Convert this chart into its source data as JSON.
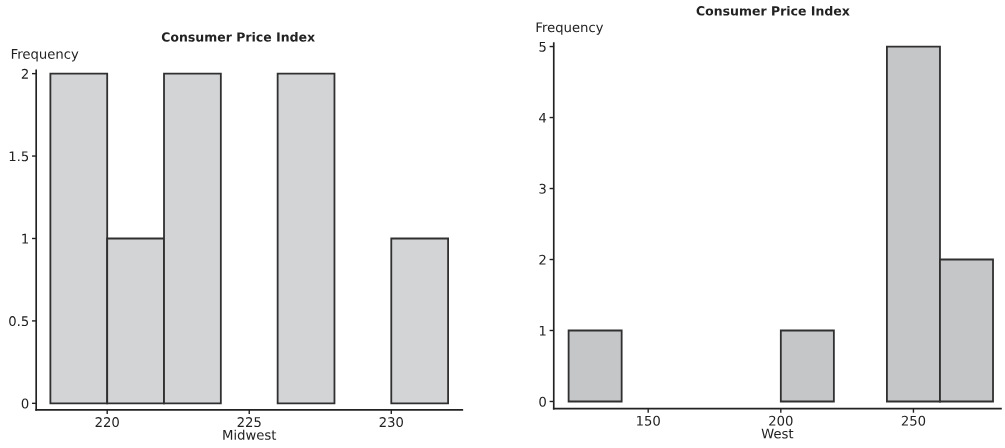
{
  "chart_data": [
    {
      "type": "histogram",
      "title": "Consumer Price Index",
      "xlabel": "Midwest",
      "ylabel": "Frequency",
      "bins": [
        218,
        220,
        222,
        224,
        226,
        228,
        230,
        232
      ],
      "values": [
        2,
        1,
        2,
        0,
        2,
        0,
        1
      ],
      "color": "#d3d4d6",
      "xlim": [
        217.5,
        232.5
      ],
      "ylim": [
        -0.04,
        2.02
      ],
      "xticks": [
        220,
        225,
        230
      ],
      "yticks": [
        0,
        0.5,
        1,
        1.5,
        2
      ]
    },
    {
      "type": "histogram",
      "title": "Consumer Price Index",
      "xlabel": "West",
      "ylabel": "Frequency",
      "bins": [
        120,
        140,
        160,
        180,
        200,
        220,
        240,
        260,
        280
      ],
      "values": [
        1,
        0,
        0,
        0,
        1,
        0,
        5,
        2
      ],
      "color": "#c5c6c8",
      "xlim": [
        114.4,
        283
      ],
      "ylim": [
        -0.1,
        5.05
      ],
      "xticks": [
        150,
        200,
        250
      ],
      "yticks": [
        0,
        1,
        2,
        3,
        4,
        5
      ]
    }
  ]
}
